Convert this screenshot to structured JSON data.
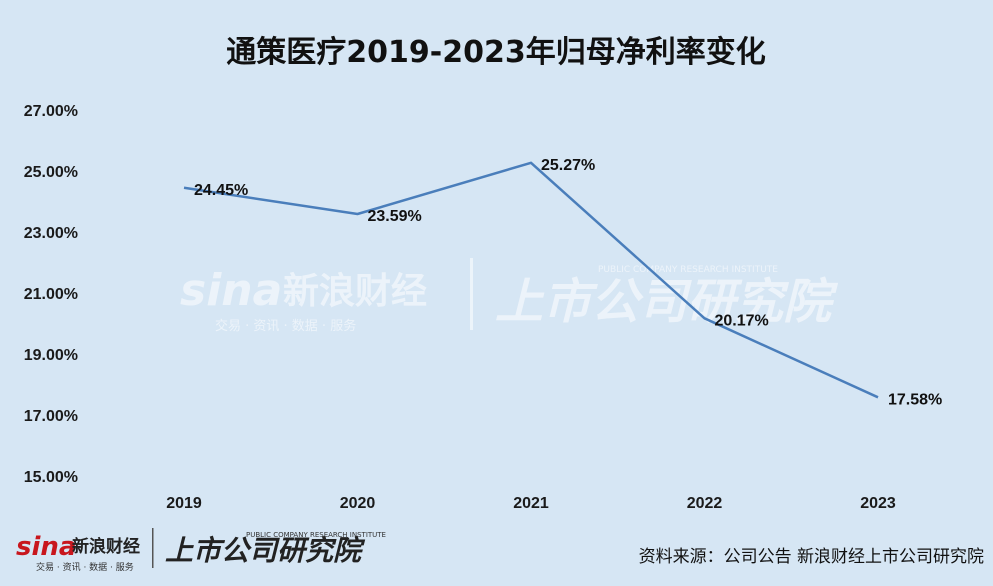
{
  "chart_data": {
    "type": "line",
    "title": "通策医疗2019-2023年归母净利率变化",
    "categories": [
      "2019",
      "2020",
      "2021",
      "2022",
      "2023"
    ],
    "series": [
      {
        "values": [
          24.45,
          23.59,
          25.27,
          20.17,
          17.58
        ],
        "labels": [
          "24.45%",
          "23.59%",
          "25.27%",
          "20.17%",
          "17.58%"
        ],
        "color": "#4a7ebb"
      }
    ],
    "ylim": [
      15,
      27
    ],
    "yticks": [
      "27.00%",
      "25.00%",
      "23.00%",
      "21.00%",
      "19.00%",
      "17.00%",
      "15.00%"
    ],
    "grid": false,
    "legend": "none"
  },
  "watermark": {
    "brand": "sina",
    "brand_cn": "新浪财经",
    "sub": "交易 · 资讯 · 数据 · 服务",
    "institute": "上市公司研究院",
    "institute_en": "PUBLIC COMPANY RESEARCH INSTITUTE"
  },
  "footer": {
    "logo_brand": "sina",
    "logo_cn": "新浪财经",
    "logo_sub": "交易 · 资讯 · 数据 · 服务",
    "institute": "上市公司研究院",
    "institute_en": "PUBLIC COMPANY RESEARCH INSTITUTE",
    "source": "资料来源：公司公告 新浪财经上市公司研究院"
  },
  "colors": {
    "background": "#d6e6f4",
    "line": "#4a7ebb",
    "brand_red": "#c8161d"
  }
}
